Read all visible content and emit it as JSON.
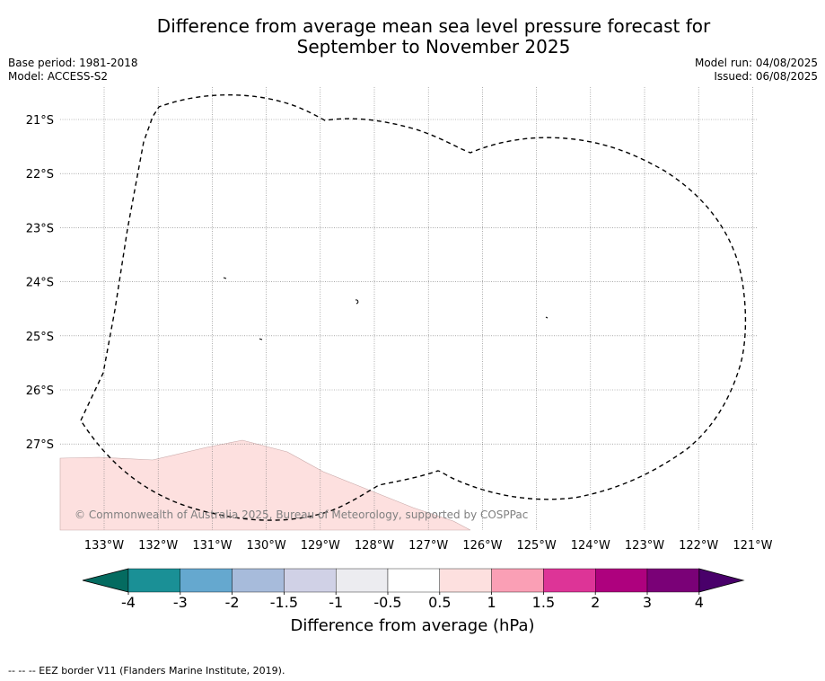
{
  "title_line1": "Difference from average mean sea level pressure forecast for",
  "title_line2": "September to November 2025",
  "meta_left": [
    "Base period: 1981-2018",
    "Model: ACCESS-S2"
  ],
  "meta_right": [
    "Model run: 04/08/2025",
    "Issued: 06/08/2025"
  ],
  "copyright": "© Commonwealth of Australia 2025, Bureau of Meteorology, supported by COSPPac",
  "map": {
    "lon_labels": [
      "133°W",
      "132°W",
      "131°W",
      "130°W",
      "129°W",
      "128°W",
      "127°W",
      "126°W",
      "125°W",
      "124°W",
      "123°W",
      "122°W",
      "121°W"
    ],
    "lat_labels": [
      "21°S",
      "22°S",
      "23°S",
      "24°S",
      "25°S",
      "26°S",
      "27°S"
    ],
    "anomaly_fill_color": "#fde0df",
    "eez_border_style": "dashed"
  },
  "colorbar": {
    "tick_labels": [
      "-4",
      "-3",
      "-2",
      "-1.5",
      "-1",
      "-0.5",
      "0.5",
      "1",
      "1.5",
      "2",
      "3",
      "4"
    ],
    "colors": [
      "#1a9096",
      "#65a8cf",
      "#a7bbdb",
      "#d0d1e6",
      "#ececf0",
      "#ffffff",
      "#fde0df",
      "#fa9fb5",
      "#dd3497",
      "#ae017e",
      "#7a0177"
    ],
    "under_color": "#046b60",
    "over_color": "#49006a",
    "label": "Difference from average (hPa)"
  },
  "footer": "-- -- -- EEZ border V11 (Flanders Marine Institute, 2019)."
}
